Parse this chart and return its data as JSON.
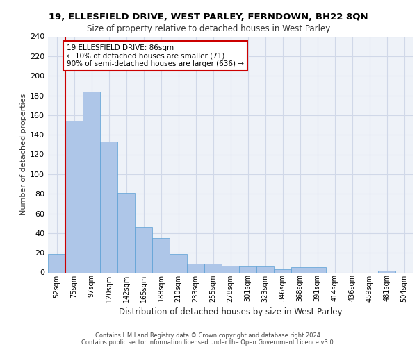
{
  "title_line1": "19, ELLESFIELD DRIVE, WEST PARLEY, FERNDOWN, BH22 8QN",
  "title_line2": "Size of property relative to detached houses in West Parley",
  "xlabel": "Distribution of detached houses by size in West Parley",
  "ylabel": "Number of detached properties",
  "categories": [
    "52sqm",
    "75sqm",
    "97sqm",
    "120sqm",
    "142sqm",
    "165sqm",
    "188sqm",
    "210sqm",
    "233sqm",
    "255sqm",
    "278sqm",
    "301sqm",
    "323sqm",
    "346sqm",
    "368sqm",
    "391sqm",
    "414sqm",
    "436sqm",
    "459sqm",
    "481sqm",
    "504sqm"
  ],
  "values": [
    19,
    154,
    184,
    133,
    81,
    46,
    35,
    19,
    9,
    9,
    7,
    6,
    6,
    3,
    5,
    5,
    0,
    0,
    0,
    2,
    0
  ],
  "bar_color": "#aec6e8",
  "bar_edge_color": "#5a9fd4",
  "grid_color": "#d0d8e8",
  "background_color": "#eef2f8",
  "vline_x": 0.5,
  "vline_color": "#cc0000",
  "annotation_text": "19 ELLESFIELD DRIVE: 86sqm\n← 10% of detached houses are smaller (71)\n90% of semi-detached houses are larger (636) →",
  "annotation_box_color": "#ffffff",
  "annotation_box_edge": "#cc0000",
  "footer_line1": "Contains HM Land Registry data © Crown copyright and database right 2024.",
  "footer_line2": "Contains public sector information licensed under the Open Government Licence v3.0.",
  "ylim": [
    0,
    240
  ],
  "yticks": [
    0,
    20,
    40,
    60,
    80,
    100,
    120,
    140,
    160,
    180,
    200,
    220,
    240
  ]
}
